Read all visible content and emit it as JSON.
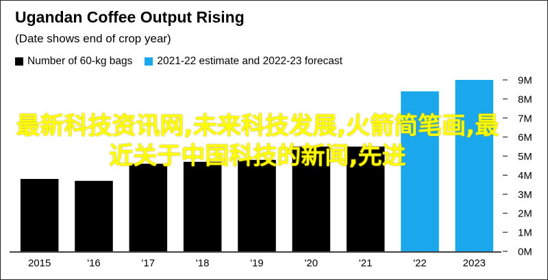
{
  "title": "Ugandan Coffee Output Rising",
  "subtitle": "(Date shows end of crop year)",
  "legend": [
    {
      "label": "Number of 60-kg bags",
      "color": "#000000"
    },
    {
      "label": "2021-22 estimate and 2022-23 forecast",
      "color": "#1aa7ec"
    }
  ],
  "overlay_text": "最新科技资讯网,未来科技发展,火箭简笔画,最近关于中国科技的新闻,先进",
  "chart_data": {
    "type": "bar",
    "categories": [
      "2015",
      "'16",
      "'17",
      "'18",
      "'19",
      "'20",
      "'21",
      "'22",
      "2023"
    ],
    "values": [
      3.8,
      3.7,
      4.6,
      4.7,
      4.8,
      5.5,
      5.5,
      8.4,
      9.0
    ],
    "kinds": [
      "actual",
      "actual",
      "actual",
      "actual",
      "actual",
      "actual",
      "actual",
      "forecast",
      "forecast"
    ],
    "colors": {
      "actual": "#000000",
      "forecast": "#1aa7ec"
    },
    "ylim": [
      0,
      9
    ],
    "yticks": [
      0,
      1,
      2,
      3,
      4,
      5,
      6,
      7,
      8,
      9
    ],
    "ytick_labels": [
      "0M",
      "1M",
      "2M",
      "3M",
      "4M",
      "5M",
      "6M",
      "7M",
      "8M",
      "9M"
    ],
    "grid": false,
    "legend_position": "top-left"
  }
}
